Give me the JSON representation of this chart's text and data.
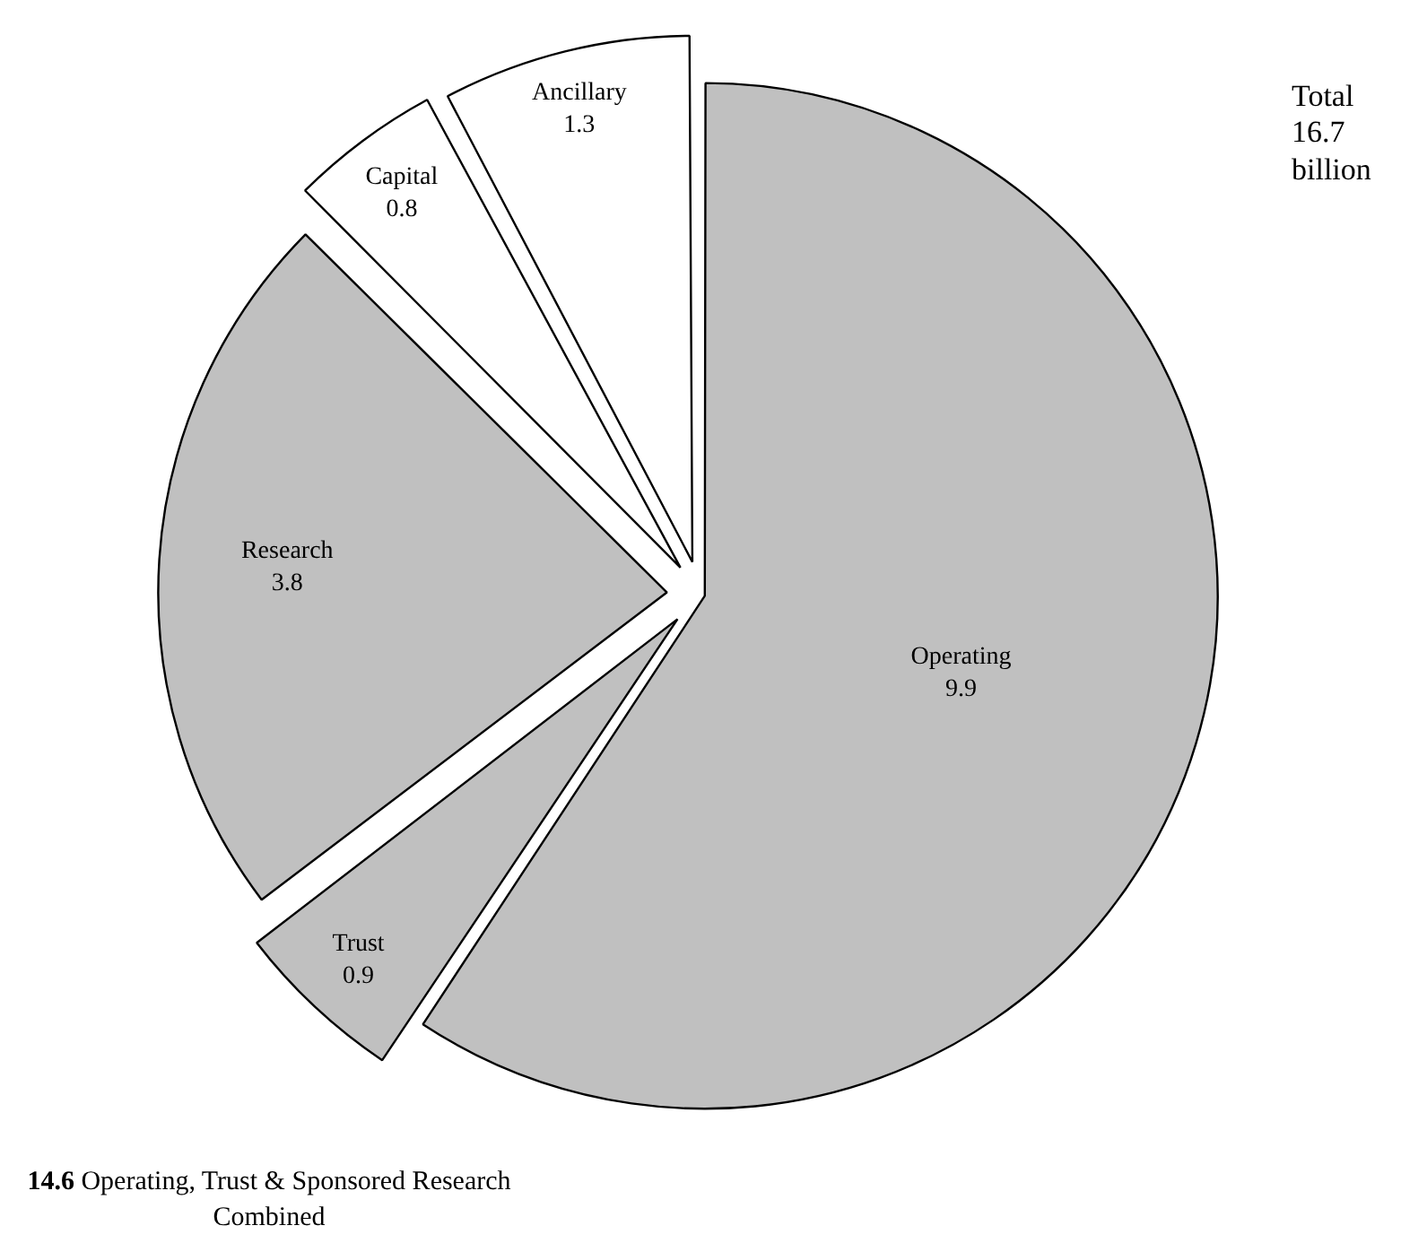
{
  "chart_data": {
    "type": "pie",
    "categories": [
      "Operating",
      "Trust",
      "Research",
      "Capital",
      "Ancillary"
    ],
    "values": [
      9.9,
      0.9,
      3.8,
      0.8,
      1.3
    ],
    "colors": [
      "#c0c0c0",
      "#c0c0c0",
      "#c0c0c0",
      "#ffffff",
      "#ffffff"
    ],
    "data_labels": true,
    "legend": false,
    "annotations": [
      "Total 16.7 billion",
      "14.6 Operating, Trust & Sponsored Research Combined"
    ]
  }
}
